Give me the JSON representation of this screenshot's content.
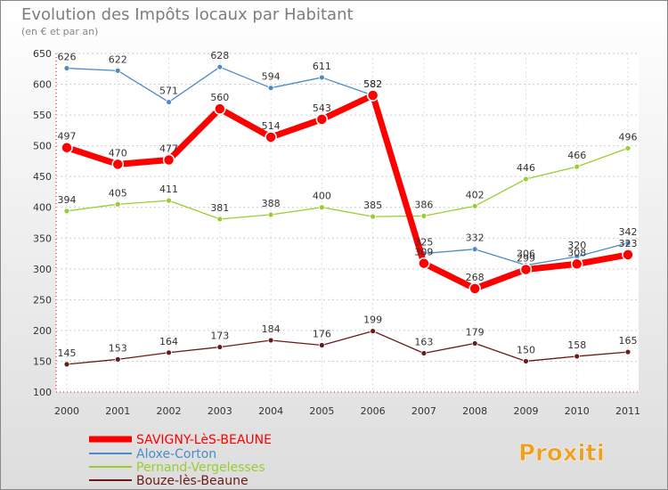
{
  "chart_data": {
    "type": "line",
    "title": "Evolution des Impôts locaux par Habitant",
    "subtitle": "(en € et par an)",
    "xlabel": "",
    "ylabel": "",
    "ylim": [
      100,
      650
    ],
    "yticks": [
      100,
      150,
      200,
      250,
      300,
      350,
      400,
      450,
      500,
      550,
      600,
      650
    ],
    "categories": [
      "2000",
      "2001",
      "2002",
      "2003",
      "2004",
      "2005",
      "2006",
      "2007",
      "2008",
      "2009",
      "2010",
      "2011"
    ],
    "series": [
      {
        "name": "SAVIGNY-LèS-BEAUNE",
        "color": "#ff0000",
        "values": [
          497,
          470,
          477,
          560,
          514,
          543,
          582,
          309,
          268,
          299,
          308,
          323
        ]
      },
      {
        "name": "Aloxe-Corton",
        "color": "#4a8cc8",
        "values": [
          626,
          622,
          571,
          628,
          594,
          611,
          582,
          325,
          332,
          306,
          320,
          342
        ]
      },
      {
        "name": "Pernand-Vergelesses",
        "color": "#9acd32",
        "values": [
          394,
          405,
          411,
          381,
          388,
          400,
          385,
          386,
          402,
          446,
          466,
          496
        ]
      },
      {
        "name": "Bouze-lès-Beaune",
        "color": "#6b1a1a",
        "values": [
          145,
          153,
          164,
          173,
          184,
          176,
          199,
          163,
          179,
          150,
          158,
          165
        ]
      }
    ],
    "legend_position": "bottom-left"
  },
  "branding": {
    "logo_text": "Proxiti"
  }
}
